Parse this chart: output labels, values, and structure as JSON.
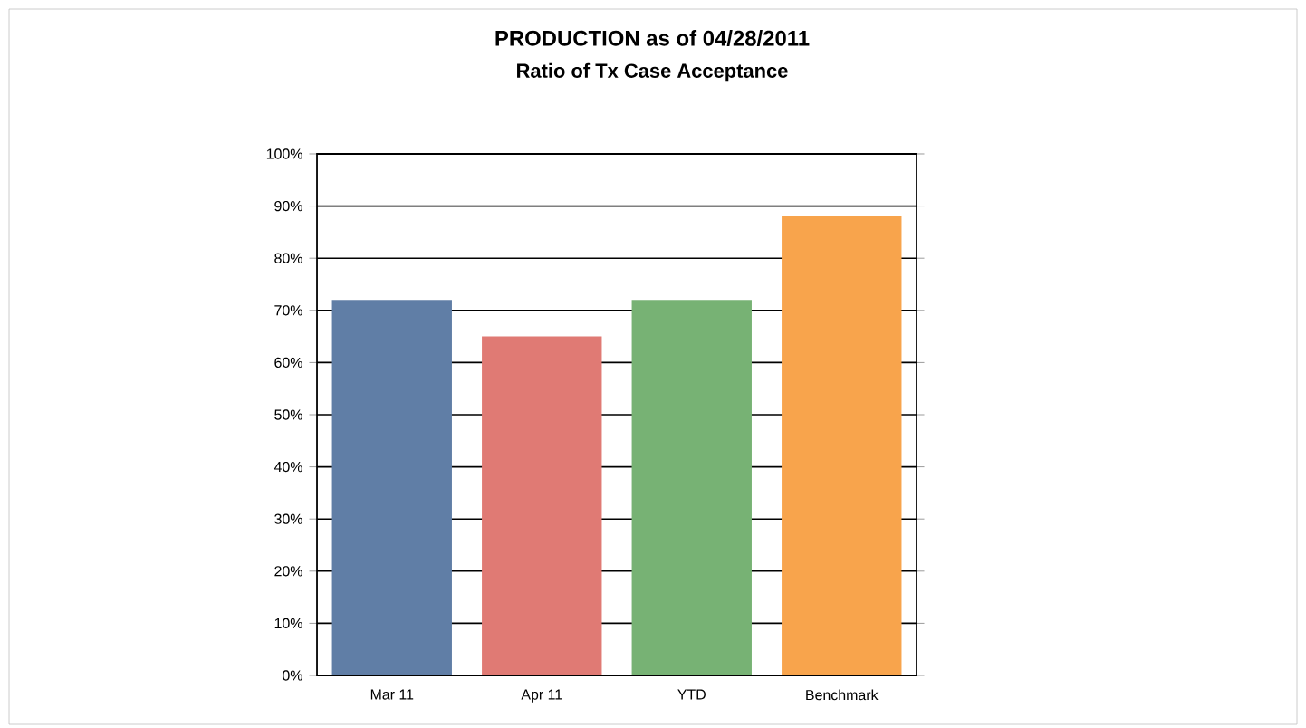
{
  "chart_data": {
    "type": "bar",
    "title": "PRODUCTION as of 04/28/2011",
    "subtitle": "Ratio of Tx Case Acceptance",
    "categories": [
      "Mar 11",
      "Apr 11",
      "YTD",
      "Benchmark"
    ],
    "values": [
      72,
      65,
      72,
      88
    ],
    "colors": [
      "#607ea6",
      "#e07a74",
      "#77b274",
      "#f8a44c"
    ],
    "ylim": [
      0,
      100
    ],
    "yticks": [
      {
        "value": 0,
        "label": "0%"
      },
      {
        "value": 10,
        "label": "10%"
      },
      {
        "value": 20,
        "label": "20%"
      },
      {
        "value": 30,
        "label": "30%"
      },
      {
        "value": 40,
        "label": "40%"
      },
      {
        "value": 50,
        "label": "50%"
      },
      {
        "value": 60,
        "label": "60%"
      },
      {
        "value": 70,
        "label": "70%"
      },
      {
        "value": 80,
        "label": "80%"
      },
      {
        "value": 90,
        "label": "90%"
      },
      {
        "value": 100,
        "label": "100%"
      }
    ],
    "grid": "y"
  }
}
